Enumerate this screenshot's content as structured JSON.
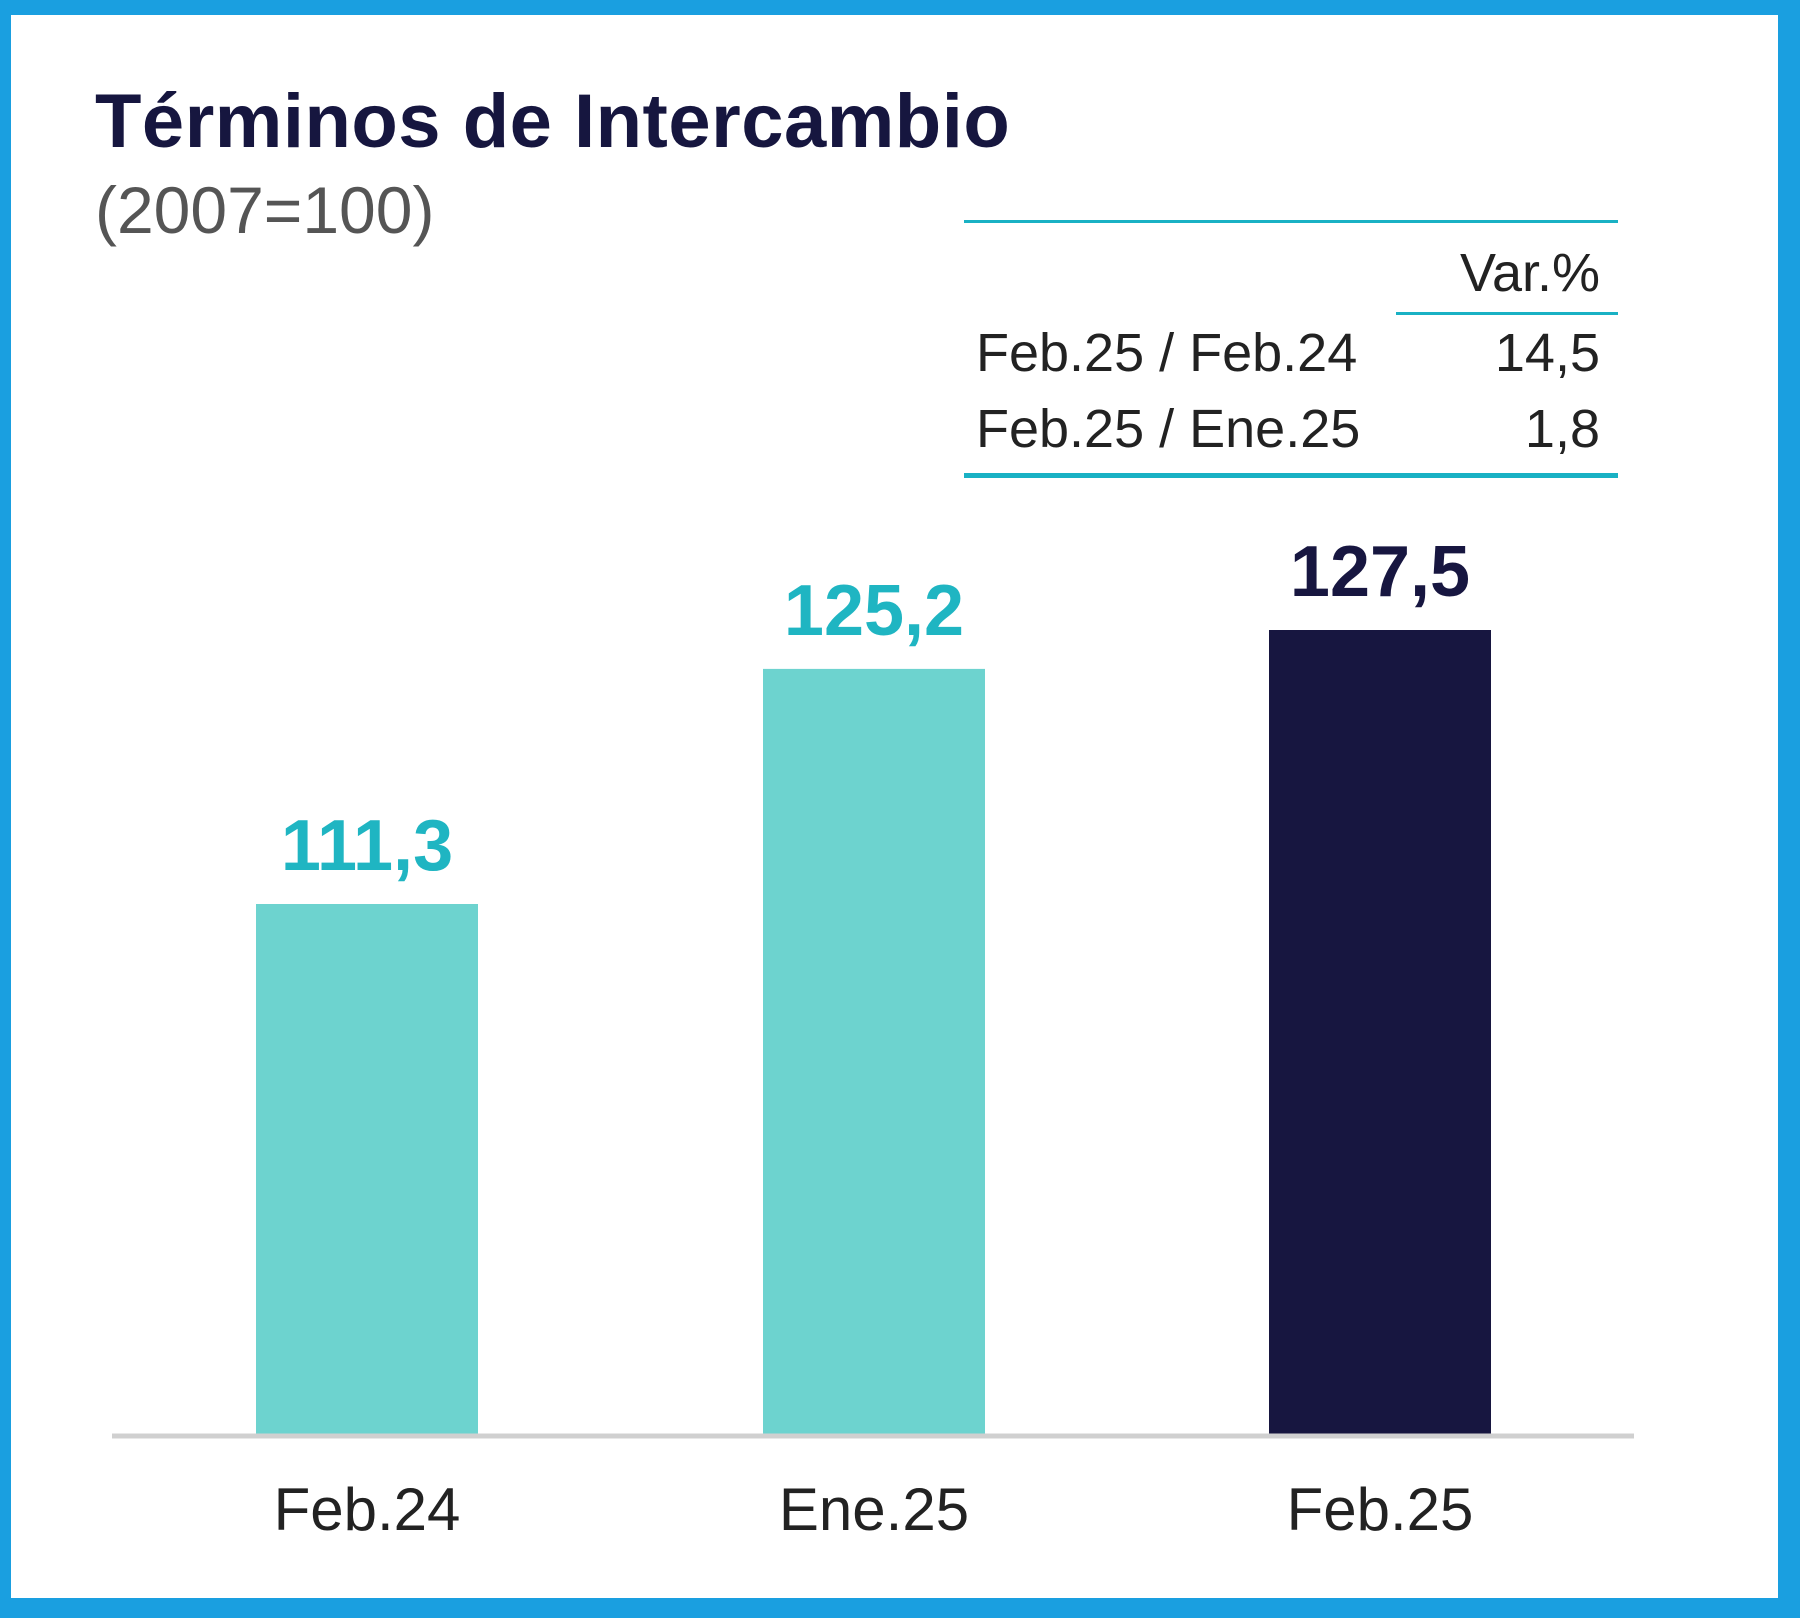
{
  "title": "Términos de Intercambio",
  "subtitle": "(2007=100)",
  "variation_table": {
    "header": "Var.%",
    "rows": [
      {
        "label": "Feb.25 / Feb.24",
        "value": "14,5"
      },
      {
        "label": "Feb.25 / Ene.25",
        "value": "1,8"
      }
    ]
  },
  "colors": {
    "frame": "#1a9fe0",
    "bar_light": "#6dd3cf",
    "bar_dark": "#171640",
    "label_light": "#1fb5c2",
    "label_dark": "#171640",
    "rule": "#19b1c4",
    "axis": "#d0d0d0"
  },
  "chart_data": {
    "type": "bar",
    "title": "Términos de Intercambio",
    "subtitle": "(2007=100)",
    "categories": [
      "Feb.24",
      "Ene.25",
      "Feb.25"
    ],
    "values": [
      111.3,
      125.2,
      127.5
    ],
    "value_labels": [
      "111,3",
      "125,2",
      "127,5"
    ],
    "bar_colors": [
      "#6dd3cf",
      "#6dd3cf",
      "#171640"
    ],
    "label_colors": [
      "#1fb5c2",
      "#1fb5c2",
      "#171640"
    ],
    "xlabel": "",
    "ylabel": "",
    "grid": false,
    "legend": "none"
  }
}
